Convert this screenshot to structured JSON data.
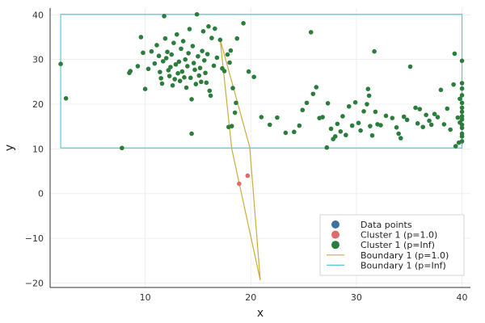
{
  "chart_data": {
    "type": "scatter",
    "title": "",
    "xlabel": "x",
    "ylabel": "y",
    "xlim": [
      1.0,
      40.8
    ],
    "ylim": [
      -21.0,
      41.5
    ],
    "x_ticks": [
      10,
      20,
      30,
      40
    ],
    "y_ticks": [
      -20,
      -10,
      0,
      10,
      20,
      30,
      40
    ],
    "x_tick_labels": [
      "10",
      "20",
      "30",
      "40"
    ],
    "y_tick_labels": [
      "−20",
      "−10",
      "0",
      "10",
      "20",
      "30",
      "40"
    ],
    "grid": true,
    "legend_position": "bottom-right",
    "series": [
      {
        "name": "Data points",
        "kind": "scatter",
        "color": "#3f6fa3",
        "points": []
      },
      {
        "name": "Cluster 1 (p=1.0)",
        "kind": "scatter",
        "color": "#e26a6a",
        "points": [
          [
            18.9,
            2.2
          ],
          [
            19.7,
            4.0
          ]
        ]
      },
      {
        "name": "Cluster 1 (p=Inf)",
        "kind": "scatter",
        "color": "#2a7d3a",
        "points": [
          [
            2.0,
            29.0
          ],
          [
            2.5,
            21.3
          ],
          [
            7.8,
            10.2
          ],
          [
            8.5,
            27.0
          ],
          [
            8.6,
            27.4
          ],
          [
            9.3,
            28.5
          ],
          [
            9.6,
            35.0
          ],
          [
            9.8,
            31.5
          ],
          [
            10.0,
            23.4
          ],
          [
            10.3,
            27.9
          ],
          [
            10.6,
            31.8
          ],
          [
            10.9,
            29.1
          ],
          [
            11.1,
            33.2
          ],
          [
            11.3,
            30.8
          ],
          [
            11.4,
            27.2
          ],
          [
            11.5,
            25.8
          ],
          [
            11.6,
            24.6
          ],
          [
            11.7,
            29.6
          ],
          [
            11.8,
            39.7
          ],
          [
            11.9,
            34.7
          ],
          [
            12.0,
            30.3
          ],
          [
            12.1,
            31.7
          ],
          [
            12.2,
            27.6
          ],
          [
            12.3,
            26.3
          ],
          [
            12.4,
            28.3
          ],
          [
            12.5,
            31.1
          ],
          [
            12.6,
            24.2
          ],
          [
            12.7,
            33.7
          ],
          [
            12.8,
            25.6
          ],
          [
            12.9,
            28.9
          ],
          [
            13.0,
            35.6
          ],
          [
            13.1,
            26.9
          ],
          [
            13.2,
            29.5
          ],
          [
            13.3,
            25.2
          ],
          [
            13.4,
            32.4
          ],
          [
            13.5,
            27.3
          ],
          [
            13.6,
            34.1
          ],
          [
            13.7,
            26.0
          ],
          [
            13.8,
            30.0
          ],
          [
            13.9,
            23.7
          ],
          [
            14.0,
            28.5
          ],
          [
            14.1,
            31.4
          ],
          [
            14.2,
            36.8
          ],
          [
            14.3,
            25.9
          ],
          [
            14.4,
            21.1
          ],
          [
            14.4,
            13.4
          ],
          [
            14.5,
            33.0
          ],
          [
            14.6,
            29.2
          ],
          [
            14.7,
            27.7
          ],
          [
            14.8,
            24.5
          ],
          [
            14.9,
            40.1
          ],
          [
            15.0,
            30.7
          ],
          [
            15.1,
            26.4
          ],
          [
            15.2,
            28.1
          ],
          [
            15.3,
            25.0
          ],
          [
            15.4,
            31.9
          ],
          [
            15.5,
            36.3
          ],
          [
            15.6,
            29.8
          ],
          [
            15.7,
            27.0
          ],
          [
            15.8,
            24.8
          ],
          [
            15.9,
            31.2
          ],
          [
            16.0,
            37.4
          ],
          [
            16.1,
            23.0
          ],
          [
            16.2,
            21.9
          ],
          [
            16.3,
            34.8
          ],
          [
            16.5,
            28.6
          ],
          [
            16.6,
            36.9
          ],
          [
            16.8,
            30.4
          ],
          [
            17.1,
            34.4
          ],
          [
            17.3,
            28.0
          ],
          [
            17.5,
            27.4
          ],
          [
            17.8,
            31.1
          ],
          [
            17.9,
            14.9
          ],
          [
            18.0,
            29.3
          ],
          [
            18.1,
            32.0
          ],
          [
            18.2,
            15.1
          ],
          [
            18.3,
            23.6
          ],
          [
            18.5,
            18.1
          ],
          [
            18.6,
            20.3
          ],
          [
            18.7,
            34.7
          ],
          [
            19.3,
            38.1
          ],
          [
            19.8,
            27.3
          ],
          [
            20.3,
            26.1
          ],
          [
            21.0,
            17.1
          ],
          [
            21.8,
            15.4
          ],
          [
            22.5,
            17.0
          ],
          [
            23.3,
            13.6
          ],
          [
            24.1,
            13.8
          ],
          [
            24.6,
            15.2
          ],
          [
            24.9,
            18.7
          ],
          [
            25.3,
            20.3
          ],
          [
            25.7,
            36.1
          ],
          [
            25.9,
            22.3
          ],
          [
            26.2,
            23.8
          ],
          [
            26.5,
            16.9
          ],
          [
            26.8,
            17.1
          ],
          [
            27.2,
            10.3
          ],
          [
            27.3,
            20.2
          ],
          [
            27.6,
            14.5
          ],
          [
            27.8,
            12.2
          ],
          [
            28.0,
            12.8
          ],
          [
            28.2,
            15.6
          ],
          [
            28.5,
            13.9
          ],
          [
            28.7,
            17.3
          ],
          [
            29.0,
            13.1
          ],
          [
            29.3,
            19.5
          ],
          [
            29.6,
            15.2
          ],
          [
            29.9,
            20.4
          ],
          [
            30.2,
            15.8
          ],
          [
            30.4,
            14.1
          ],
          [
            30.7,
            18.4
          ],
          [
            31.0,
            20.0
          ],
          [
            31.1,
            23.4
          ],
          [
            31.2,
            21.9
          ],
          [
            31.3,
            15.1
          ],
          [
            31.5,
            13.0
          ],
          [
            31.7,
            31.8
          ],
          [
            31.8,
            18.3
          ],
          [
            32.0,
            15.5
          ],
          [
            32.3,
            15.3
          ],
          [
            32.8,
            17.4
          ],
          [
            33.4,
            16.9
          ],
          [
            33.8,
            14.8
          ],
          [
            34.0,
            13.4
          ],
          [
            34.2,
            12.4
          ],
          [
            34.5,
            17.2
          ],
          [
            34.8,
            16.5
          ],
          [
            35.1,
            28.4
          ],
          [
            35.6,
            19.2
          ],
          [
            35.8,
            15.7
          ],
          [
            36.0,
            18.9
          ],
          [
            36.3,
            14.9
          ],
          [
            36.6,
            17.6
          ],
          [
            36.9,
            16.3
          ],
          [
            37.1,
            15.4
          ],
          [
            37.4,
            17.8
          ],
          [
            37.7,
            17.1
          ],
          [
            38.0,
            23.2
          ],
          [
            38.3,
            15.5
          ],
          [
            38.6,
            19.0
          ],
          [
            38.9,
            14.3
          ],
          [
            39.2,
            24.4
          ],
          [
            39.3,
            31.3
          ],
          [
            39.4,
            10.6
          ],
          [
            39.6,
            17.0
          ],
          [
            39.7,
            11.4
          ],
          [
            39.8,
            15.9
          ],
          [
            39.8,
            21.2
          ],
          [
            40.0,
            29.7
          ],
          [
            40.0,
            24.7
          ],
          [
            40.0,
            23.5
          ],
          [
            40.0,
            22.0
          ],
          [
            40.0,
            20.3
          ],
          [
            40.0,
            19.2
          ],
          [
            40.0,
            18.3
          ],
          [
            40.0,
            17.3
          ],
          [
            40.0,
            16.6
          ],
          [
            40.0,
            15.4
          ],
          [
            40.0,
            14.7
          ],
          [
            40.0,
            13.4
          ],
          [
            40.0,
            12.8
          ],
          [
            40.0,
            11.7
          ]
        ]
      },
      {
        "name": "Boundary 1 (p=1.0)",
        "kind": "line",
        "color": "#c9ae3c",
        "points": [
          [
            17.1,
            34.5
          ],
          [
            18.2,
            10.0
          ],
          [
            20.9,
            -19.4
          ],
          [
            19.9,
            10.4
          ],
          [
            17.1,
            34.5
          ]
        ]
      },
      {
        "name": "Boundary 1 (p=Inf)",
        "kind": "line",
        "color": "#5cc8d6",
        "points": [
          [
            2.0,
            10.2
          ],
          [
            40.0,
            10.2
          ],
          [
            40.0,
            40.1
          ],
          [
            2.0,
            40.1
          ],
          [
            2.0,
            10.2
          ]
        ]
      }
    ]
  }
}
